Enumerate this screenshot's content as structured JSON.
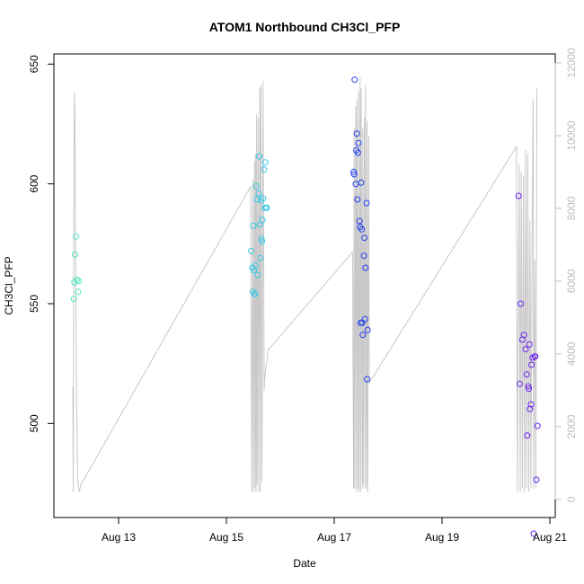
{
  "chart_data": {
    "type": "scatter",
    "title": "ATOM1 Northbound CH3Cl_PFP",
    "xlabel": "Date",
    "ylabel": "CH3Cl_PFP",
    "x_ticks": [
      "Aug 13",
      "Aug 15",
      "Aug 17",
      "Aug 19",
      "Aug 21"
    ],
    "x_range": [
      "2016-08-12T00:00",
      "2016-08-21T00:00"
    ],
    "xlim_days": [
      12.0,
      21.0
    ],
    "ylim": [
      463,
      652
    ],
    "y_ticks": [
      500,
      550,
      600,
      650
    ],
    "y2_label": "",
    "y2_ticks": [
      0,
      2000,
      4000,
      6000,
      8000,
      10000,
      12000
    ],
    "y2lim": [
      -350,
      12100
    ],
    "grid": false,
    "legend": "none",
    "colors": {
      "group1": "#4fe8c0",
      "group2": "#33c8e8",
      "group3": "#1f3ef0",
      "group4": "#6a1ff0",
      "trace": "#c8c8c8"
    },
    "series": [
      {
        "color_key": "group1",
        "x_days": [
          12.17,
          12.18,
          12.19,
          12.21,
          12.23,
          12.25,
          12.26
        ],
        "values": [
          552,
          559,
          570.5,
          578,
          560,
          555,
          559.5
        ]
      },
      {
        "color_key": "group2",
        "x_days": [
          15.46,
          15.48,
          15.49,
          15.5,
          15.51,
          15.52,
          15.53,
          15.54,
          15.55,
          15.57,
          15.58,
          15.6,
          15.61,
          15.62,
          15.63,
          15.64,
          15.65,
          15.66,
          15.67,
          15.68,
          15.7,
          15.71,
          15.72,
          15.74,
          15.75
        ],
        "values": [
          572,
          565,
          555,
          582.5,
          564,
          554,
          554,
          566,
          599,
          593.5,
          562,
          596,
          611.5,
          583,
          569,
          593,
          577,
          576,
          585,
          594,
          606,
          590,
          609,
          590,
          590
        ]
      },
      {
        "color_key": "group3",
        "x_days": [
          17.36,
          17.37,
          17.38,
          17.4,
          17.41,
          17.42,
          17.43,
          17.44,
          17.45,
          17.47,
          17.48,
          17.49,
          17.5,
          17.51,
          17.52,
          17.53,
          17.55,
          17.56,
          17.57,
          17.58,
          17.6,
          17.61,
          17.62
        ],
        "values": [
          605,
          604,
          643.5,
          600,
          614,
          621,
          593.5,
          613,
          617,
          584.5,
          582,
          542,
          600.5,
          581,
          542,
          537,
          570,
          577.5,
          543.5,
          565,
          592,
          518.5,
          539
        ]
      },
      {
        "color_key": "group4",
        "x_days": [
          20.42,
          20.44,
          20.46,
          20.49,
          20.52,
          20.55,
          20.57,
          20.58,
          20.6,
          20.61,
          20.62,
          20.63,
          20.65,
          20.66,
          20.68,
          20.7,
          20.72,
          20.73,
          20.75,
          20.77
        ],
        "values": [
          595,
          516.5,
          550,
          535,
          537,
          531,
          520.5,
          495,
          515.5,
          514.5,
          533,
          506,
          508,
          524.5,
          527.5,
          454,
          528,
          528,
          476.5,
          499
        ]
      }
    ],
    "secondary_trace": {
      "axis": "right",
      "x_days": [
        12.15,
        12.16,
        12.17,
        12.18,
        12.19,
        12.2,
        12.22,
        12.24,
        12.27,
        12.3,
        15.45,
        15.47,
        15.49,
        15.5,
        15.52,
        15.53,
        15.54,
        15.55,
        15.56,
        15.57,
        15.59,
        15.6,
        15.62,
        15.63,
        15.64,
        15.66,
        15.68,
        15.7,
        15.71,
        15.73,
        15.75,
        15.77,
        17.34,
        17.36,
        17.37,
        17.38,
        17.4,
        17.41,
        17.42,
        17.44,
        17.45,
        17.46,
        17.48,
        17.49,
        17.5,
        17.52,
        17.53,
        17.54,
        17.56,
        17.57,
        17.58,
        17.6,
        17.61,
        17.62,
        17.64,
        17.65,
        20.38,
        20.4,
        20.43,
        20.45,
        20.47,
        20.49,
        20.51,
        20.53,
        20.55,
        20.57,
        20.59,
        20.61,
        20.63,
        20.65,
        20.67,
        20.69,
        20.7,
        20.72,
        20.74,
        20.76
      ],
      "values": [
        3100,
        200,
        8500,
        11200,
        10500,
        7000,
        3000,
        500,
        200,
        400,
        8600,
        200,
        8800,
        200,
        9300,
        300,
        9500,
        200,
        10600,
        400,
        10500,
        200,
        11300,
        200,
        11400,
        500,
        11500,
        3000,
        3300,
        3600,
        3800,
        4100,
        6800,
        300,
        10200,
        300,
        10800,
        200,
        11000,
        300,
        11200,
        200,
        11600,
        200,
        11300,
        300,
        10200,
        400,
        10500,
        300,
        11400,
        300,
        10400,
        200,
        10000,
        3200,
        9700,
        200,
        9200,
        200,
        9000,
        300,
        8900,
        200,
        9600,
        300,
        9500,
        200,
        7700,
        300,
        7200,
        11000,
        300,
        6600,
        300,
        11300
      ]
    }
  }
}
